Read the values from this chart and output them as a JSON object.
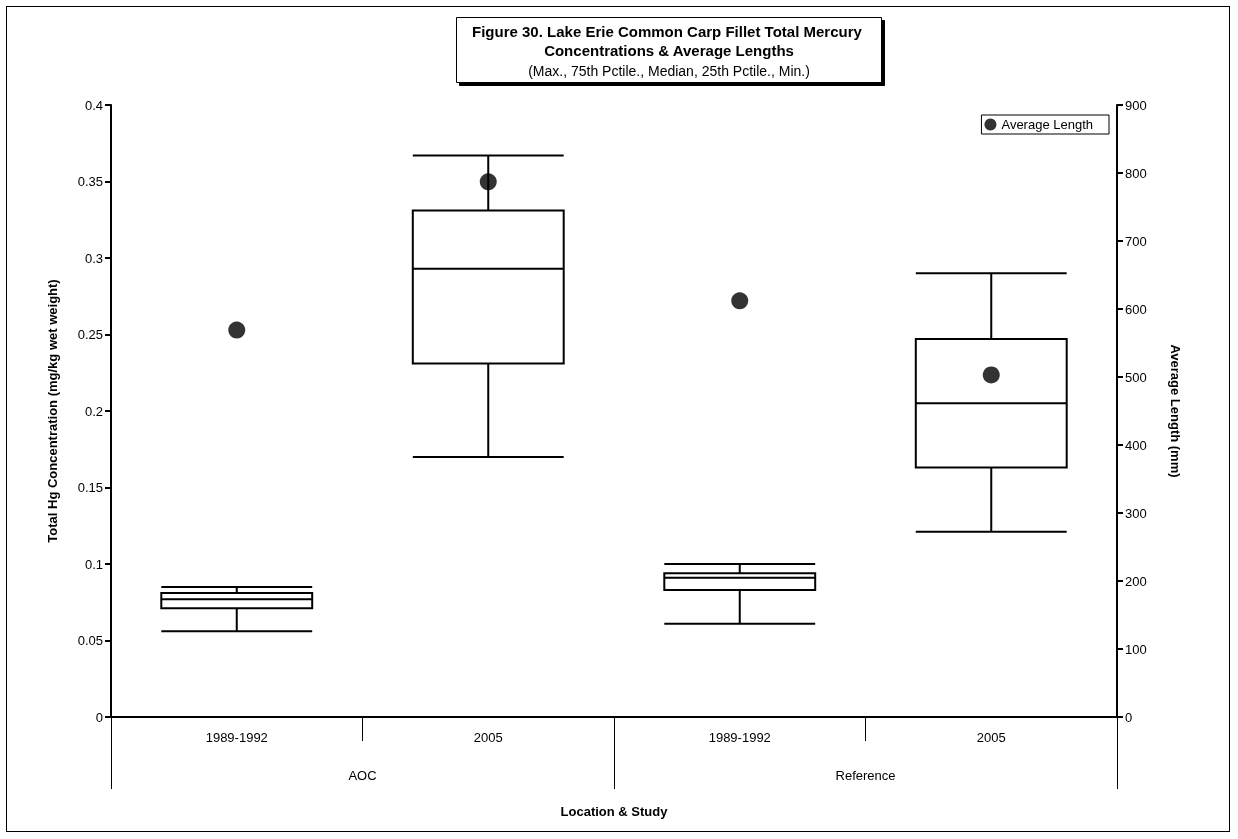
{
  "chart_data": {
    "type": "box",
    "title": "Figure 30. Lake Erie Common Carp Fillet Total Mercury Concentrations & Average Lengths",
    "subtitle": "(Max., 75th Pctile., Median, 25th Pctile., Min.)",
    "xlabel": "Location & Study",
    "ylabel": "Total Hg Concentration (mg/kg wet weight)",
    "y2label": "Average Length (mm)",
    "categories": [
      "1989-1992",
      "2005",
      "1989-1992",
      "2005"
    ],
    "annotations": [
      "AOC",
      "Reference"
    ],
    "series": [
      {
        "color": "#000000",
        "boxes": [
          {
            "low": 0.056,
            "q1": 0.071,
            "median": 0.077,
            "q3": 0.081,
            "high": 0.085
          },
          {
            "low": 0.17,
            "q1": 0.231,
            "median": 0.293,
            "q3": 0.331,
            "high": 0.367
          },
          {
            "low": 0.061,
            "q1": 0.083,
            "median": 0.091,
            "q3": 0.094,
            "high": 0.1
          },
          {
            "low": 0.121,
            "q1": 0.163,
            "median": 0.205,
            "q3": 0.247,
            "high": 0.29
          }
        ]
      },
      {
        "type": "scatter",
        "name": "Average Length",
        "color": "#000000",
        "axis": "y2",
        "values": [
          569,
          787,
          612,
          503
        ]
      }
    ],
    "ylim": [
      0,
      0.4
    ],
    "yticks": [
      0,
      0.05,
      0.1,
      0.15,
      0.2,
      0.25,
      0.3,
      0.35,
      0.4
    ],
    "y2lim": [
      0,
      900
    ],
    "y2ticks": [
      0,
      100,
      200,
      300,
      400,
      500,
      600,
      700,
      800,
      900
    ],
    "grid": false,
    "legend": "top right",
    "marker": "circle"
  }
}
